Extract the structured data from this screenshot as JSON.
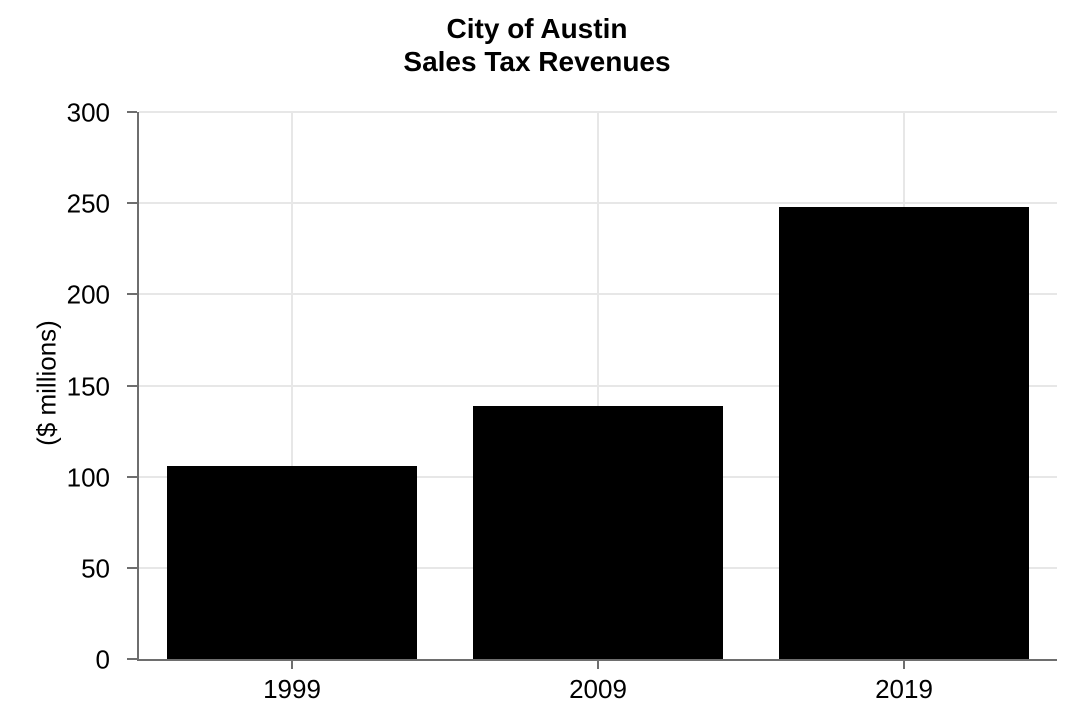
{
  "chart_data": {
    "type": "bar",
    "title_lines": [
      "City of Austin",
      "Sales Tax Revenues"
    ],
    "categories": [
      "1999",
      "2009",
      "2019"
    ],
    "values": [
      106,
      139,
      248
    ],
    "xlabel": "",
    "ylabel": "($ millions)",
    "ylim": [
      0,
      300
    ],
    "yticks": [
      0,
      50,
      100,
      150,
      200,
      250,
      300
    ],
    "grid": true,
    "legend": false,
    "bar_color": "#000000",
    "axis_color": "#6e6e6e",
    "gridline_color": "#e7e7e7",
    "background_color": "#ffffff",
    "text_color": "#000000"
  }
}
